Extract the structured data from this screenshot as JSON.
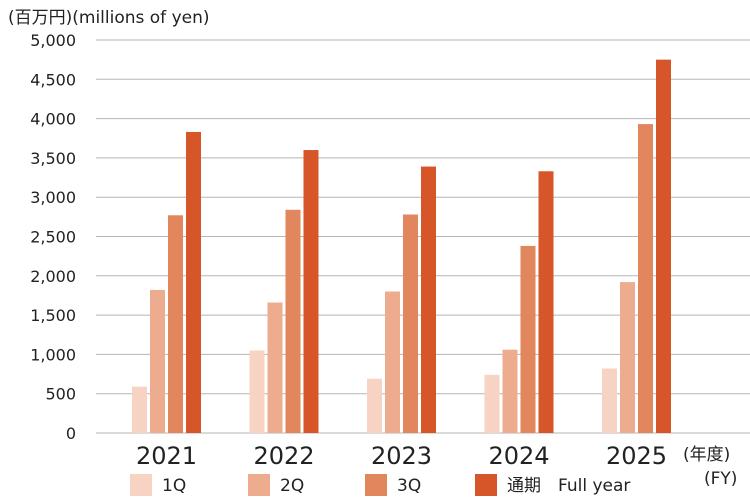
{
  "chart_data": {
    "type": "bar",
    "ylabel": "(百万円)(millions of yen)",
    "xlabel_ja": "(年度)",
    "xlabel_en": "(FY)",
    "ylim": [
      0,
      5000
    ],
    "yticks": [
      "0",
      "500",
      "1,000",
      "1,500",
      "2,000",
      "2,500",
      "3,000",
      "3,500",
      "4,000",
      "4,500",
      "5,000"
    ],
    "ytick_values": [
      0,
      500,
      1000,
      1500,
      2000,
      2500,
      3000,
      3500,
      4000,
      4500,
      5000
    ],
    "grid": true,
    "categories": [
      "2021",
      "2022",
      "2023",
      "2024",
      "2025"
    ],
    "series": [
      {
        "name": "1Q",
        "color": "#f7d3c3",
        "values": [
          590,
          1050,
          690,
          740,
          820
        ]
      },
      {
        "name": "2Q",
        "color": "#eeac8f",
        "values": [
          1820,
          1660,
          1800,
          1060,
          1920
        ]
      },
      {
        "name": "3Q",
        "color": "#e2865d",
        "values": [
          2770,
          2840,
          2780,
          2380,
          3930
        ]
      },
      {
        "name": "通期　Full year",
        "color": "#d6562a",
        "values": [
          3830,
          3600,
          3390,
          3330,
          4750
        ]
      }
    ],
    "legend_position": "bottom"
  }
}
